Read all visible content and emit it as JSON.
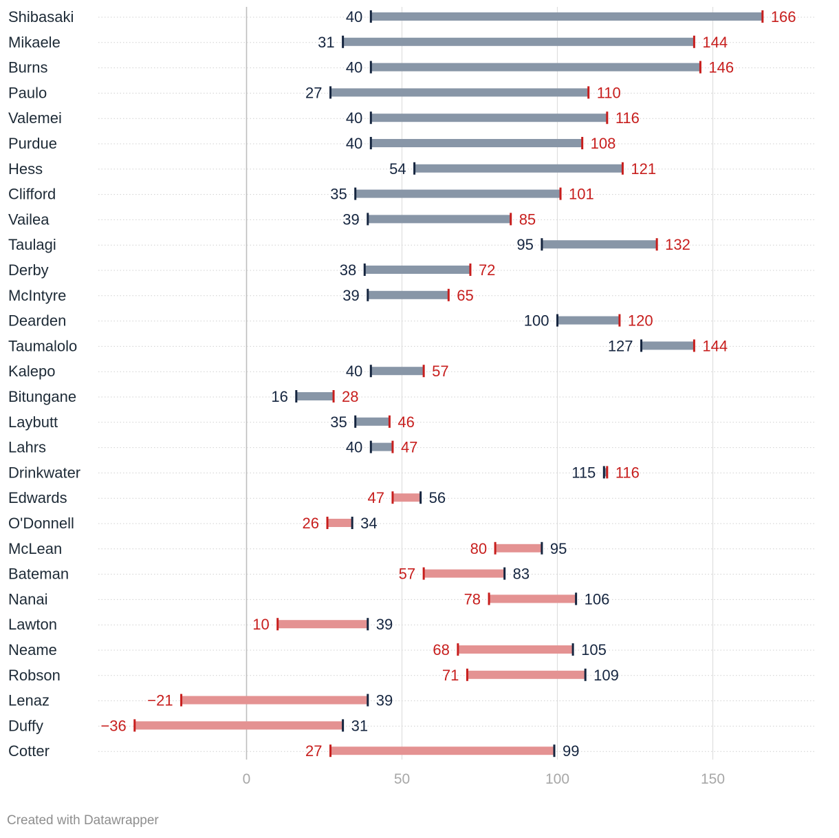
{
  "chart_data": {
    "type": "range-dot",
    "x_ticks": [
      0,
      50,
      100,
      150
    ],
    "xlim": [
      -47,
      183
    ],
    "grid": "vertical",
    "rows": [
      {
        "name": "Shibasaki",
        "start": 40,
        "end": 166
      },
      {
        "name": "Mikaele",
        "start": 31,
        "end": 144
      },
      {
        "name": "Burns",
        "start": 40,
        "end": 146
      },
      {
        "name": "Paulo",
        "start": 27,
        "end": 110
      },
      {
        "name": "Valemei",
        "start": 40,
        "end": 116
      },
      {
        "name": "Purdue",
        "start": 40,
        "end": 108
      },
      {
        "name": "Hess",
        "start": 54,
        "end": 121
      },
      {
        "name": "Clifford",
        "start": 35,
        "end": 101
      },
      {
        "name": "Vailea",
        "start": 39,
        "end": 85
      },
      {
        "name": "Taulagi",
        "start": 95,
        "end": 132
      },
      {
        "name": "Derby",
        "start": 38,
        "end": 72
      },
      {
        "name": "McIntyre",
        "start": 39,
        "end": 65
      },
      {
        "name": "Dearden",
        "start": 100,
        "end": 120
      },
      {
        "name": "Taumalolo",
        "start": 127,
        "end": 144
      },
      {
        "name": "Kalepo",
        "start": 40,
        "end": 57
      },
      {
        "name": "Bitungane",
        "start": 16,
        "end": 28
      },
      {
        "name": "Laybutt",
        "start": 35,
        "end": 46
      },
      {
        "name": "Lahrs",
        "start": 40,
        "end": 47
      },
      {
        "name": "Drinkwater",
        "start": 115,
        "end": 116
      },
      {
        "name": "Edwards",
        "start": 56,
        "end": 47
      },
      {
        "name": "O'Donnell",
        "start": 34,
        "end": 26
      },
      {
        "name": "McLean",
        "start": 95,
        "end": 80
      },
      {
        "name": "Bateman",
        "start": 83,
        "end": 57
      },
      {
        "name": "Nanai",
        "start": 106,
        "end": 78
      },
      {
        "name": "Lawton",
        "start": 39,
        "end": 10
      },
      {
        "name": "Neame",
        "start": 105,
        "end": 68
      },
      {
        "name": "Robson",
        "start": 109,
        "end": 71
      },
      {
        "name": "Lenaz",
        "start": 39,
        "end": -21
      },
      {
        "name": "Duffy",
        "start": 31,
        "end": -36
      },
      {
        "name": "Cotter",
        "start": 99,
        "end": 27
      }
    ],
    "colors": {
      "start": "#15253f",
      "end": "#c71e1d",
      "bar_increase": "#8896a7",
      "bar_decrease": "#e49292",
      "grid": "#dedede",
      "zero_line": "#bdbdbd"
    }
  },
  "footer": {
    "credit": "Created with Datawrapper"
  }
}
